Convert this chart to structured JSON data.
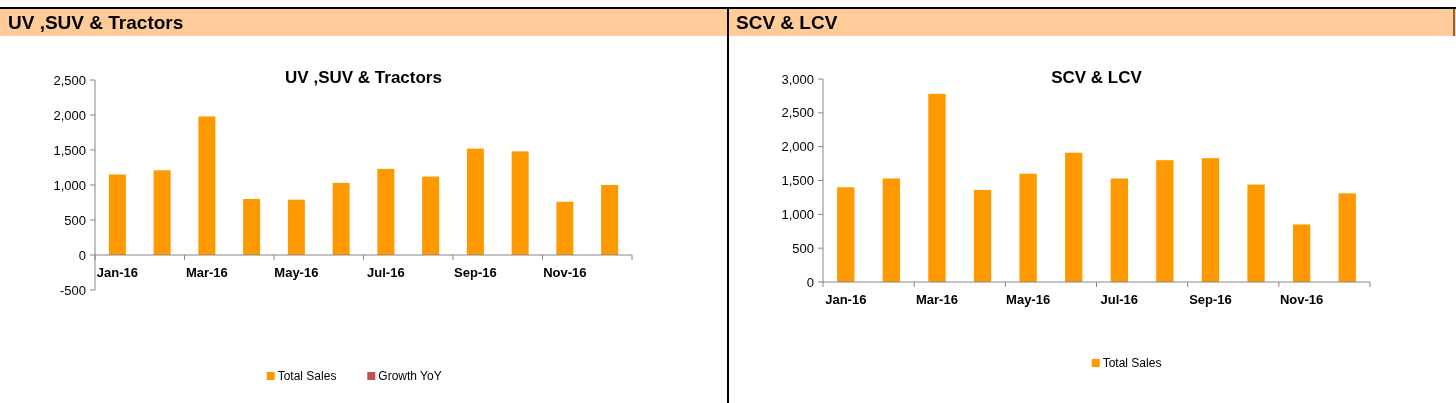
{
  "chart_data": [
    {
      "type": "bar",
      "subtitle": "UV ,SUV & Tractors",
      "title": "UV ,SUV & Tractors",
      "categories": [
        "Jan-16",
        null,
        "Mar-16",
        null,
        "May-16",
        null,
        "Jul-16",
        null,
        "Sep-16",
        null,
        "Nov-16",
        null
      ],
      "series": [
        {
          "name": "Total Sales",
          "color": "#ff9900",
          "values": [
            1150,
            1210,
            1980,
            800,
            790,
            1030,
            1230,
            1120,
            1520,
            1480,
            760,
            1000
          ]
        },
        {
          "name": "Growth YoY",
          "color": "#c0504d",
          "values": [
            null,
            null,
            null,
            null,
            null,
            null,
            null,
            null,
            null,
            null,
            null,
            null
          ]
        }
      ],
      "ylim": [
        -500,
        2500
      ],
      "yticks": [
        {
          "value": -500,
          "label": "-500"
        },
        {
          "value": 0,
          "label": "0"
        },
        {
          "value": 500,
          "label": "500"
        },
        {
          "value": 1000,
          "label": "1,000"
        },
        {
          "value": 1500,
          "label": "1,500"
        },
        {
          "value": 2000,
          "label": "2,000"
        },
        {
          "value": 2500,
          "label": "2,500"
        }
      ],
      "grid": false,
      "legend": "bottom"
    },
    {
      "type": "bar",
      "subtitle": "SCV & LCV",
      "title": "SCV & LCV",
      "categories": [
        "Jan-16",
        null,
        "Mar-16",
        null,
        "May-16",
        null,
        "Jul-16",
        null,
        "Sep-16",
        null,
        "Nov-16",
        null
      ],
      "series": [
        {
          "name": "Total Sales",
          "color": "#ff9900",
          "values": [
            1400,
            1530,
            2780,
            1360,
            1600,
            1910,
            1530,
            1800,
            1830,
            1440,
            850,
            1310
          ]
        }
      ],
      "ylim": [
        0,
        3000
      ],
      "yticks": [
        {
          "value": 0,
          "label": "0"
        },
        {
          "value": 500,
          "label": "500"
        },
        {
          "value": 1000,
          "label": "1,000"
        },
        {
          "value": 1500,
          "label": "1,500"
        },
        {
          "value": 2000,
          "label": "2,000"
        },
        {
          "value": 2500,
          "label": "2,500"
        },
        {
          "value": 3000,
          "label": "3,000"
        }
      ],
      "grid": false,
      "legend": "bottom"
    }
  ]
}
